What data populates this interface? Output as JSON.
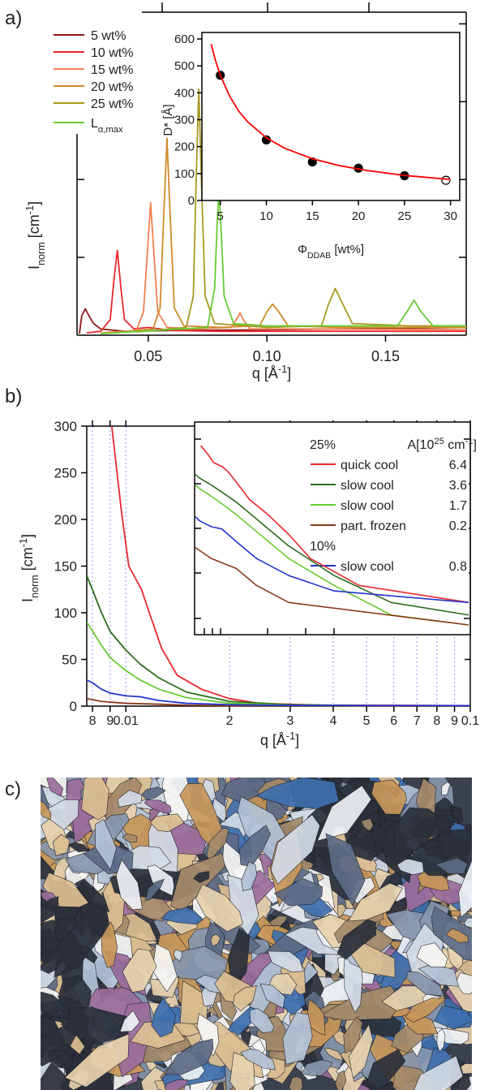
{
  "panel_labels": [
    "a)",
    "b)",
    "c)"
  ],
  "chart_data": [
    {
      "type": "line",
      "xlabel": [
        {
          "text": "q [Å"
        },
        {
          "text": "-1",
          "shift": "sup"
        },
        {
          "text": "]"
        }
      ],
      "ylabel": [
        {
          "text": "I"
        },
        {
          "text": "norm",
          "shift": "sub"
        },
        {
          "text": " [cm"
        },
        {
          "text": "-1",
          "shift": "sup"
        },
        {
          "text": "]"
        }
      ],
      "xlim": [
        0.02,
        0.184
      ],
      "ylim": [
        0,
        4.15
      ],
      "xticks": [
        0.05,
        {
          "value": 0.1,
          "label": "0.10"
        },
        0.15
      ],
      "yticks": [
        1,
        2,
        3,
        4
      ],
      "legend": "top-left",
      "series": [
        {
          "name": "5 wt%",
          "color": "#8b1a1a",
          "x": [
            0.021,
            0.022,
            0.0235,
            0.025,
            0.027,
            0.03,
            0.04,
            0.06,
            0.1,
            0.184
          ],
          "values": [
            0.02,
            0.25,
            0.34,
            0.25,
            0.15,
            0.08,
            0.05,
            0.06,
            0.07,
            0.1
          ]
        },
        {
          "name": "10 wt%",
          "color": "#e8282d",
          "x": [
            0.024,
            0.03,
            0.034,
            0.0355,
            0.037,
            0.0385,
            0.04,
            0.044,
            0.05,
            0.06,
            0.08,
            0.1,
            0.15,
            0.184
          ],
          "values": [
            0.03,
            0.05,
            0.2,
            0.7,
            1.09,
            0.6,
            0.2,
            0.08,
            0.1,
            0.06,
            0.05,
            0.05,
            0.05,
            0.05
          ]
        },
        {
          "name": "15 wt%",
          "color": "#f08050",
          "x": [
            0.03,
            0.045,
            0.048,
            0.0495,
            0.051,
            0.0525,
            0.054,
            0.058,
            0.07,
            0.085,
            0.0875,
            0.0887,
            0.09,
            0.093,
            0.12,
            0.184
          ],
          "values": [
            0.03,
            0.06,
            0.3,
            1.0,
            1.7,
            1.0,
            0.3,
            0.1,
            0.08,
            0.1,
            0.22,
            0.29,
            0.2,
            0.08,
            0.08,
            0.07
          ]
        },
        {
          "name": "20 wt%",
          "color": "#d08a2a",
          "x": [
            0.035,
            0.052,
            0.055,
            0.0565,
            0.0579,
            0.0593,
            0.061,
            0.065,
            0.08,
            0.097,
            0.1,
            0.1024,
            0.105,
            0.109,
            0.13,
            0.184
          ],
          "values": [
            0.03,
            0.08,
            0.35,
            1.5,
            2.53,
            1.5,
            0.35,
            0.12,
            0.1,
            0.12,
            0.3,
            0.4,
            0.3,
            0.12,
            0.1,
            0.1
          ]
        },
        {
          "name": "25 wt%",
          "color": "#a89820",
          "x": [
            0.045,
            0.066,
            0.069,
            0.0702,
            0.0713,
            0.0724,
            0.074,
            0.078,
            0.1,
            0.123,
            0.126,
            0.1288,
            0.132,
            0.136,
            0.16,
            0.184
          ],
          "values": [
            0.04,
            0.1,
            0.5,
            2.0,
            3.16,
            2.0,
            0.5,
            0.15,
            0.1,
            0.12,
            0.4,
            0.6,
            0.4,
            0.15,
            0.12,
            0.12
          ]
        },
        {
          "name": [
            {
              "text": "L"
            },
            {
              "text": "α,max",
              "shift": "sub"
            }
          ],
          "color": "#66cc33",
          "x": [
            0.03,
            0.075,
            0.078,
            0.079,
            0.0798,
            0.0808,
            0.082,
            0.086,
            0.1,
            0.155,
            0.159,
            0.162,
            0.165,
            0.17,
            0.184
          ],
          "values": [
            0.02,
            0.1,
            0.6,
            1.4,
            1.875,
            1.3,
            0.5,
            0.15,
            0.12,
            0.12,
            0.3,
            0.45,
            0.3,
            0.12,
            0.12
          ]
        }
      ]
    },
    {
      "type": "scatter",
      "xlabel": [
        {
          "text": "Φ"
        },
        {
          "text": "DDAB",
          "shift": "sub"
        },
        {
          "text": " [wt%]"
        }
      ],
      "ylabel": [
        {
          "text": "D* [Å]"
        }
      ],
      "xlim": [
        3,
        31
      ],
      "ylim": [
        0,
        600
      ],
      "xticks": [
        5,
        10,
        15,
        20,
        25,
        30
      ],
      "yticks": [
        0,
        100,
        200,
        300,
        400,
        500,
        600
      ],
      "points": {
        "color": "#000000",
        "x": [
          5,
          10,
          15,
          20,
          25,
          29.5
        ],
        "values": [
          465,
          225,
          143,
          120,
          92,
          75
        ],
        "open": [
          false,
          false,
          false,
          false,
          false,
          true
        ]
      },
      "fit": {
        "color": "#ff0000",
        "x": [
          4,
          4.5,
          5,
          6,
          7,
          8,
          10,
          12,
          15,
          18,
          21,
          25,
          30
        ],
        "values": [
          581,
          517,
          465,
          388,
          332,
          291,
          233,
          194,
          155,
          129,
          111,
          93,
          78
        ]
      }
    },
    {
      "type": "line",
      "xscale": "log",
      "grid": "x",
      "xlabel": [
        {
          "text": "q [Å"
        },
        {
          "text": "-1",
          "shift": "sup"
        },
        {
          "text": "]"
        }
      ],
      "ylabel": [
        {
          "text": "I"
        },
        {
          "text": "norm",
          "shift": "sub"
        },
        {
          "text": " [cm"
        },
        {
          "text": "-1",
          "shift": "sup"
        },
        {
          "text": "]"
        }
      ],
      "xlim": [
        0.0077,
        0.1
      ],
      "ylim": [
        0,
        300
      ],
      "xticks": [
        {
          "value": 0.008,
          "label": "8"
        },
        {
          "value": 0.009,
          "label": "9"
        },
        0.01,
        {
          "value": 0.02,
          "label": "2"
        },
        {
          "value": 0.03,
          "label": "3"
        },
        {
          "value": 0.04,
          "label": "4"
        },
        {
          "value": 0.05,
          "label": "5"
        },
        {
          "value": 0.06,
          "label": "6"
        },
        {
          "value": 0.07,
          "label": "7"
        },
        {
          "value": 0.08,
          "label": "8"
        },
        {
          "value": 0.09,
          "label": "9"
        },
        0.1
      ],
      "yticks": [
        0,
        50,
        100,
        150,
        200,
        250,
        300
      ],
      "inset": {
        "xscale": "log",
        "yscale": "log",
        "xlim": [
          0.009,
          0.1
        ],
        "ylim": [
          0.2,
          600
        ]
      },
      "legend_headers": [
        "25%",
        "10%"
      ],
      "value_header": [
        {
          "text": "A[10"
        },
        {
          "text": "25",
          "shift": "sup"
        },
        {
          "text": " cm"
        },
        {
          "text": "-1",
          "shift": "sup"
        },
        {
          "text": "]"
        }
      ],
      "series": [
        {
          "name": "quick cool",
          "color": "#e8282d",
          "A": 6.4,
          "group": 0,
          "x": [
            0.0091,
            0.0097,
            0.0102,
            0.0111,
            0.0117,
            0.0127,
            0.0141,
            0.0166,
            0.02,
            0.0243,
            0.0375,
            0.1
          ],
          "values": [
            300,
            210,
            150,
            125,
            100,
            62,
            33,
            18,
            8,
            3,
            1,
            0.5
          ]
        },
        {
          "name": "slow cool",
          "color": "#2d6e1e",
          "A": 3.6,
          "group": 0,
          "x": [
            0.0077,
            0.0085,
            0.009,
            0.01,
            0.011,
            0.0125,
            0.015,
            0.02,
            0.03,
            0.05,
            0.1
          ],
          "values": [
            140,
            100,
            80,
            60,
            45,
            30,
            15,
            5,
            1.5,
            0.5,
            0.3
          ]
        },
        {
          "name": "slow cool",
          "color": "#66cc33",
          "A": 1.7,
          "group": 0,
          "x": [
            0.0077,
            0.0085,
            0.009,
            0.01,
            0.011,
            0.0125,
            0.015,
            0.02,
            0.03,
            0.05,
            0.1
          ],
          "values": [
            90,
            65,
            52,
            38,
            28,
            18,
            9,
            3,
            1,
            0.3,
            0.2
          ]
        },
        {
          "name": "part. frozen",
          "color": "#8b3a1a",
          "A": 0.2,
          "group": 0,
          "x": [
            0.0077,
            0.0085,
            0.01,
            0.0125,
            0.015,
            0.02,
            0.1
          ],
          "values": [
            8,
            5,
            3,
            2,
            1,
            0.5,
            0.2
          ]
        },
        {
          "name": "slow cool",
          "color": "#2233cc",
          "A": 0.8,
          "group": 1,
          "x": [
            0.0077,
            0.008,
            0.0085,
            0.009,
            0.01,
            0.011,
            0.0125,
            0.015,
            0.02,
            0.03,
            0.1
          ],
          "values": [
            28,
            25,
            18,
            14,
            11,
            10,
            6,
            3,
            1.5,
            0.8,
            0.5
          ]
        }
      ]
    }
  ]
}
